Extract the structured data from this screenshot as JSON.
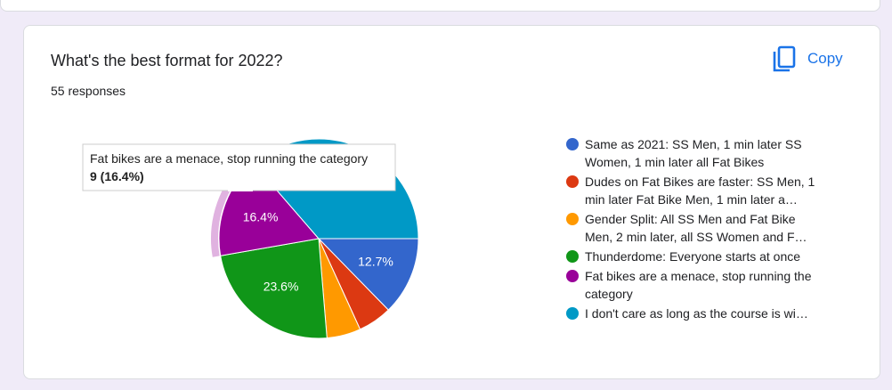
{
  "question": "What's the best format for 2022?",
  "responses": "55 responses",
  "copy_label": "Copy",
  "tooltip": {
    "title": "Fat bikes are a menace, stop running the category",
    "value": "9 (16.4%)"
  },
  "chart_data": {
    "type": "pie",
    "categories": [
      "Same as 2021: SS Men, 1 min later SS Women, 1 min later all Fat Bikes",
      "Dudes on Fat Bikes are faster: SS Men, 1 min later Fat Bike Men, 1 min later a…",
      "Gender Split: All SS Men and Fat Bike Men, 2 min later, all SS Women and F…",
      "Thunderdome: Everyone starts at once",
      "Fat bikes are a menace, stop running the category",
      "I don't care as long as the course is wi…"
    ],
    "values": [
      12.7,
      5.5,
      5.5,
      23.6,
      16.4,
      36.4
    ],
    "value_labels": [
      "12.7%",
      null,
      null,
      "23.6%",
      "16.4%",
      null
    ],
    "colors": [
      "#3366cc",
      "#dc3912",
      "#ff9900",
      "#109618",
      "#990099",
      "#0099c6"
    ],
    "highlighted": 4
  }
}
